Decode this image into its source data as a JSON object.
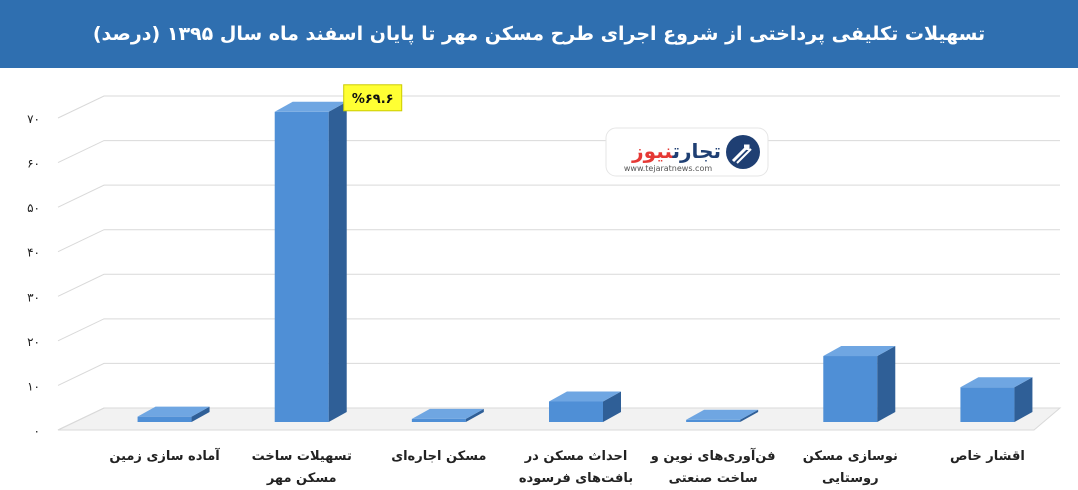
{
  "header": {
    "title": "تسهیلات تکلیفی پرداختی از شروع اجرای طرح مسکن مهر تا پایان اسفند ماه سال ۱۳۹۵ (درصد)",
    "background_color": "#2f6fb0"
  },
  "logo": {
    "name_part1": "تجارت",
    "name_part2": "نیوز",
    "url": "www.tejaratnews.com",
    "icon": "tejaratnews-logo-icon",
    "color_dark": "#1f3f73",
    "color_accent": "#e53935"
  },
  "chart_data": {
    "type": "bar",
    "title": "تسهیلات تکلیفی پرداختی از شروع اجرای طرح مسکن مهر تا پایان اسفند ماه سال ۱۳۹۵ (درصد)",
    "categories": [
      [
        "آماده سازی زمین"
      ],
      [
        "تسهیلات ساخت",
        "مسکن مهر"
      ],
      [
        "مسکن اجاره‌ای"
      ],
      [
        "احداث مسکن در",
        "بافت‌های فرسوده"
      ],
      [
        "فن‌آوری‌های نوین و",
        "ساخت صنعتی"
      ],
      [
        "نوسازی مسکن",
        "روستایی"
      ],
      [
        "اقشار خاص"
      ]
    ],
    "values": [
      1.2,
      69.6,
      0.7,
      4.6,
      0.5,
      14.8,
      7.8
    ],
    "ylim": [
      0,
      70
    ],
    "yticks": [
      0,
      10,
      20,
      30,
      40,
      50,
      60,
      70
    ],
    "ytick_labels": [
      "۰",
      "۱۰",
      "۲۰",
      "۳۰",
      "۴۰",
      "۵۰",
      "۶۰",
      "۷۰"
    ],
    "data_labels": [
      {
        "index": 1,
        "text": "%۶۹.۶"
      }
    ],
    "colors": {
      "bar_front": "#4f8fd6",
      "bar_side": "#2f5f97",
      "bar_top": "#6fa6e2",
      "grid": "#d9d9d9",
      "label_highlight": "#ffff33"
    },
    "grid": true,
    "legend": "none",
    "three_d": true
  }
}
